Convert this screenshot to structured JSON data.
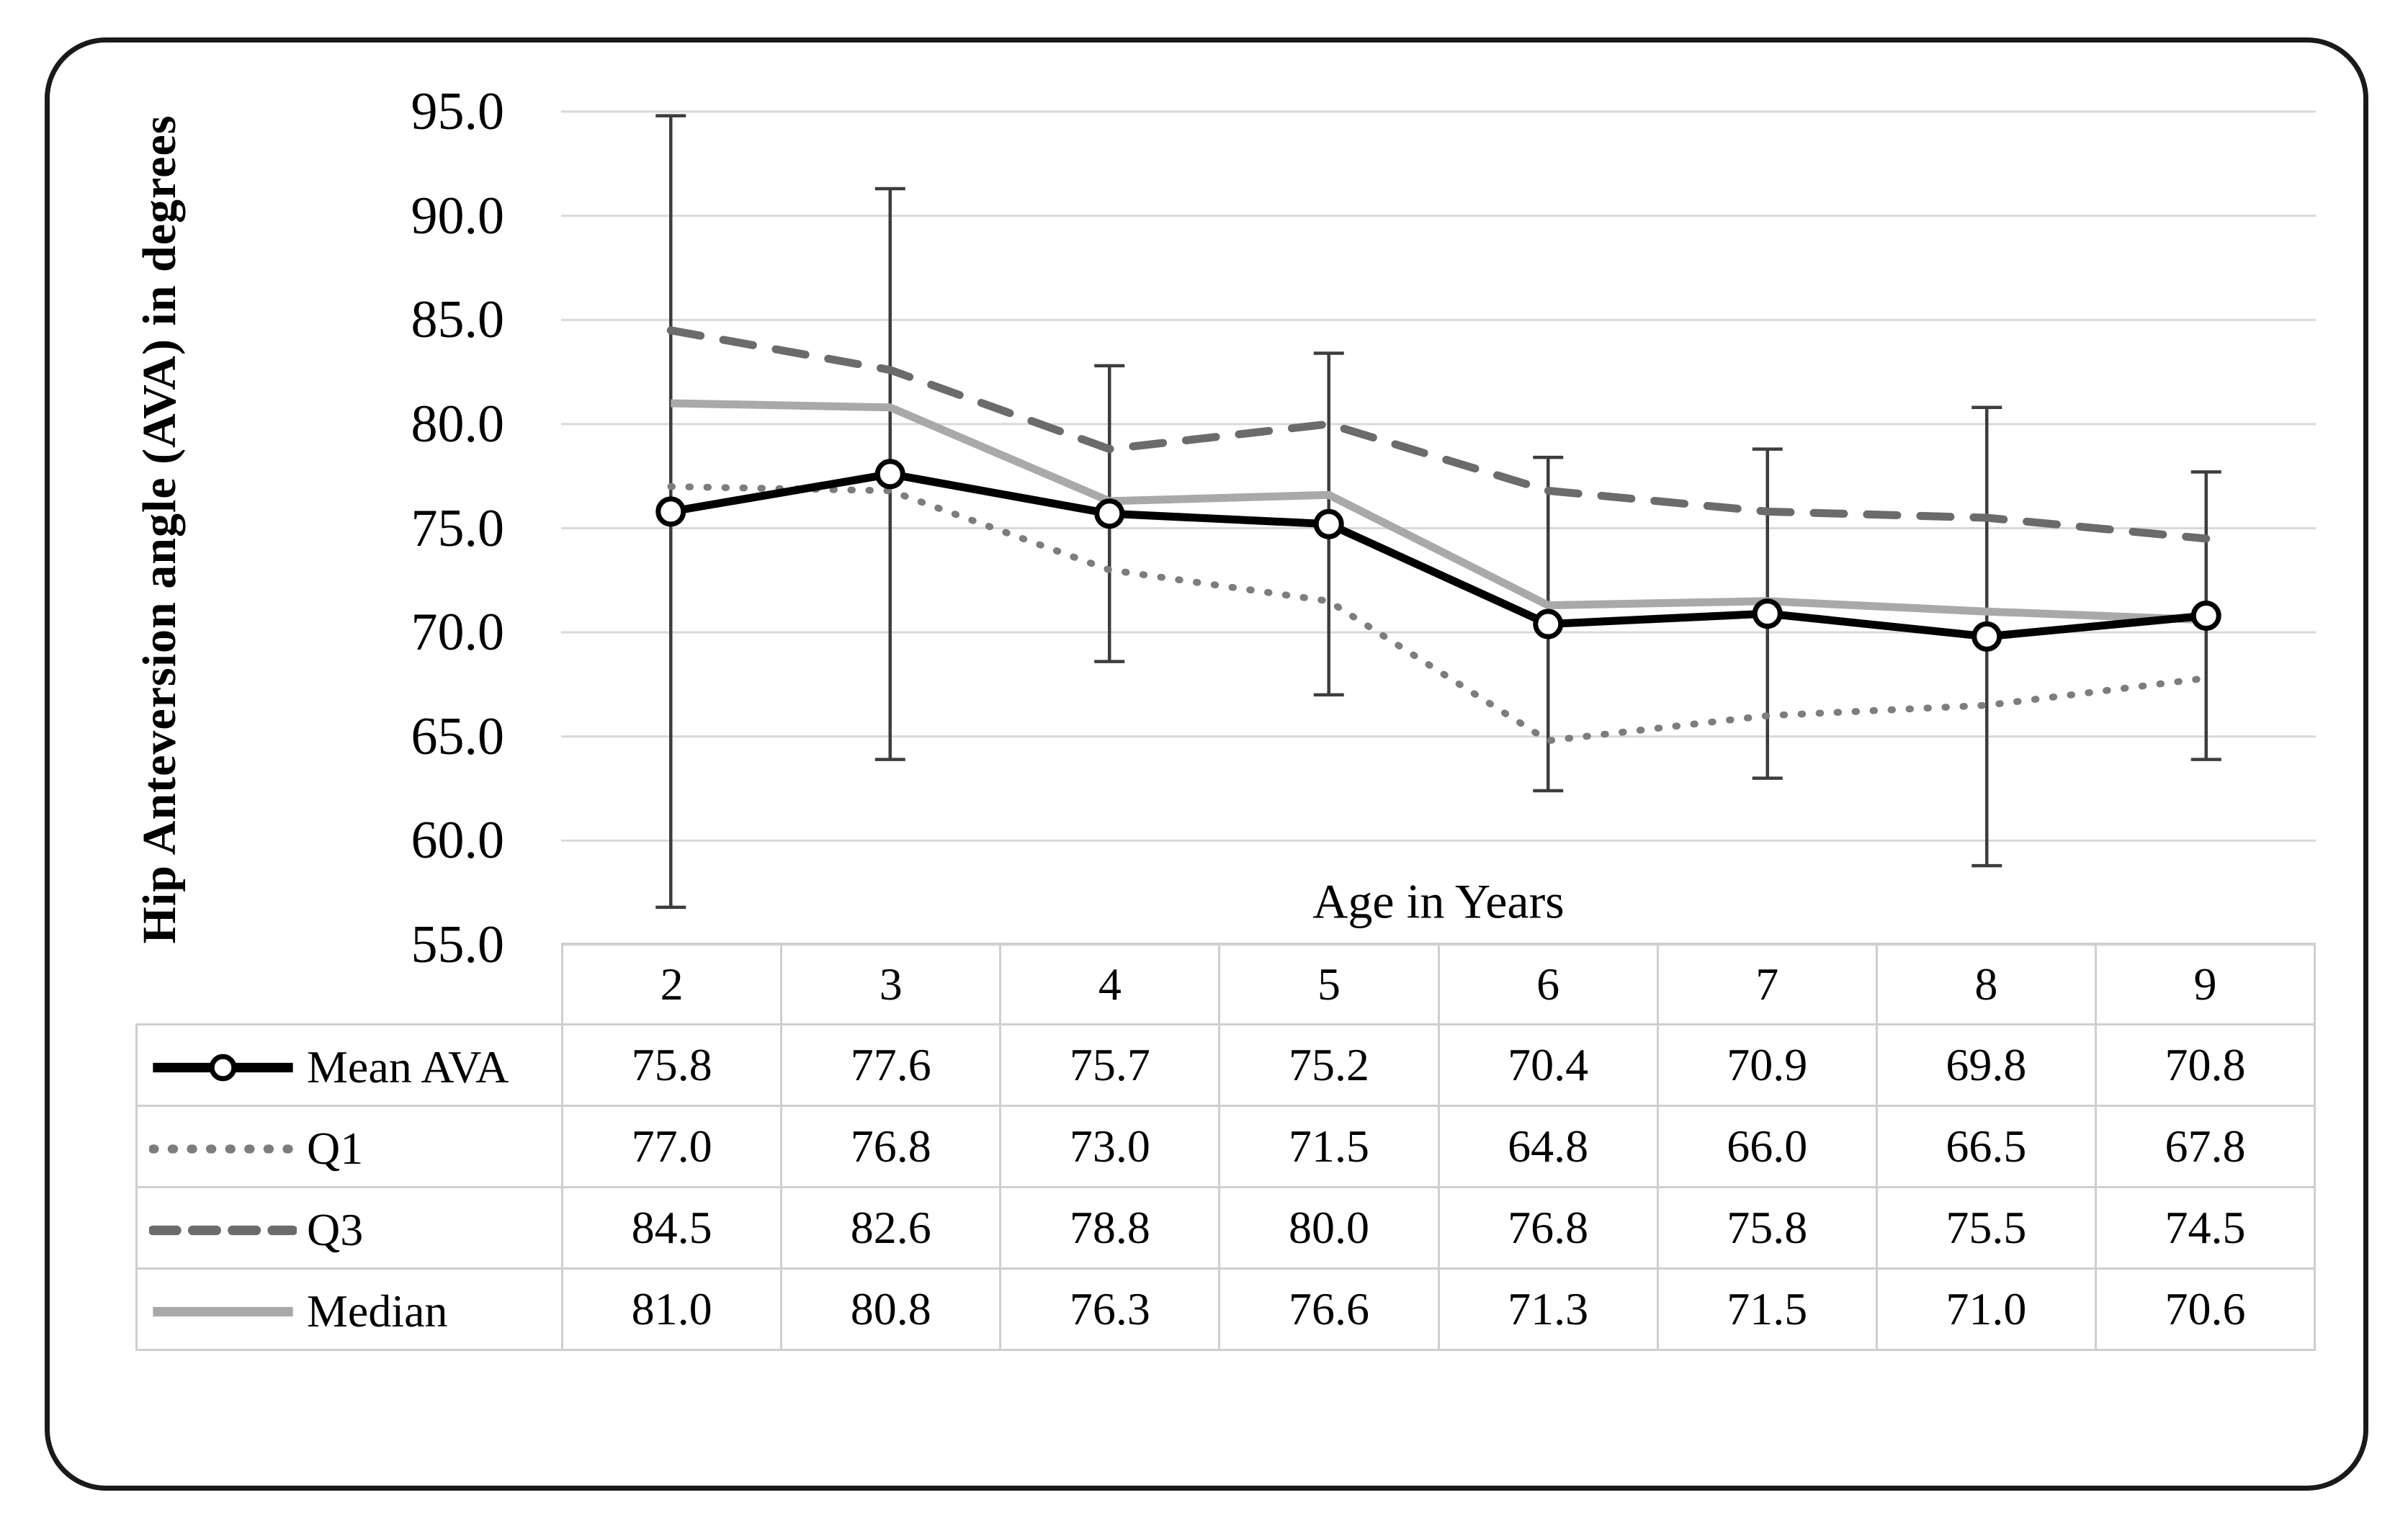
{
  "chart_data": {
    "type": "line",
    "x": [
      2,
      3,
      4,
      5,
      6,
      7,
      8,
      9
    ],
    "xlabel": "Age in Years",
    "ylabel": "Hip Anteversion angle (AVA) in degrees",
    "ylim": [
      55,
      95
    ],
    "ytick_step": 5,
    "ytick_labels": [
      "95.0",
      "90.0",
      "85.0",
      "80.0",
      "75.0",
      "70.0",
      "65.0",
      "60.0",
      "55.0"
    ],
    "grid": "horizontal",
    "legend_position": "table-left",
    "series": [
      {
        "name": "Mean AVA",
        "key": "mean",
        "color": "#000000",
        "style": "solid-with-circle-markers",
        "values": [
          75.8,
          77.6,
          75.7,
          75.2,
          70.4,
          70.9,
          69.8,
          70.8
        ],
        "error_bars": {
          "upper": [
            94.8,
            91.3,
            82.8,
            83.4,
            78.4,
            78.8,
            80.8,
            77.7
          ],
          "lower": [
            56.8,
            63.9,
            68.6,
            67.0,
            62.4,
            63.0,
            58.8,
            63.9
          ]
        }
      },
      {
        "name": "Q1",
        "key": "q1",
        "color": "#7d7d7d",
        "style": "dotted",
        "values": [
          77.0,
          76.8,
          73.0,
          71.5,
          64.8,
          66.0,
          66.5,
          67.8
        ]
      },
      {
        "name": "Q3",
        "key": "q3",
        "color": "#6b6b6b",
        "style": "dashed",
        "values": [
          84.5,
          82.6,
          78.8,
          80.0,
          76.8,
          75.8,
          75.5,
          74.5
        ]
      },
      {
        "name": "Median",
        "key": "median",
        "color": "#a9a9a9",
        "style": "solid",
        "values": [
          81.0,
          80.8,
          76.3,
          76.6,
          71.3,
          71.5,
          71.0,
          70.6
        ]
      }
    ]
  },
  "table": {
    "header": [
      "2",
      "3",
      "4",
      "5",
      "6",
      "7",
      "8",
      "9"
    ],
    "rows": [
      {
        "label": "Mean AVA",
        "key": "mean",
        "values": [
          "75.8",
          "77.6",
          "75.7",
          "75.2",
          "70.4",
          "70.9",
          "69.8",
          "70.8"
        ]
      },
      {
        "label": "Q1",
        "key": "q1",
        "values": [
          "77.0",
          "76.8",
          "73.0",
          "71.5",
          "64.8",
          "66.0",
          "66.5",
          "67.8"
        ]
      },
      {
        "label": "Q3",
        "key": "q3",
        "values": [
          "84.5",
          "82.6",
          "78.8",
          "80.0",
          "76.8",
          "75.8",
          "75.5",
          "74.5"
        ]
      },
      {
        "label": "Median",
        "key": "median",
        "values": [
          "81.0",
          "80.8",
          "76.3",
          "76.6",
          "71.3",
          "71.5",
          "71.0",
          "70.6"
        ]
      }
    ]
  },
  "colors": {
    "mean": "#000000",
    "q1": "#7d7d7d",
    "q3": "#6b6b6b",
    "median": "#a9a9a9",
    "grid": "#d9d9d9",
    "error_bar": "#3d3d3d",
    "table_border": "#cfcfcf",
    "frame": "#1a1a1a",
    "text": "#000000"
  }
}
